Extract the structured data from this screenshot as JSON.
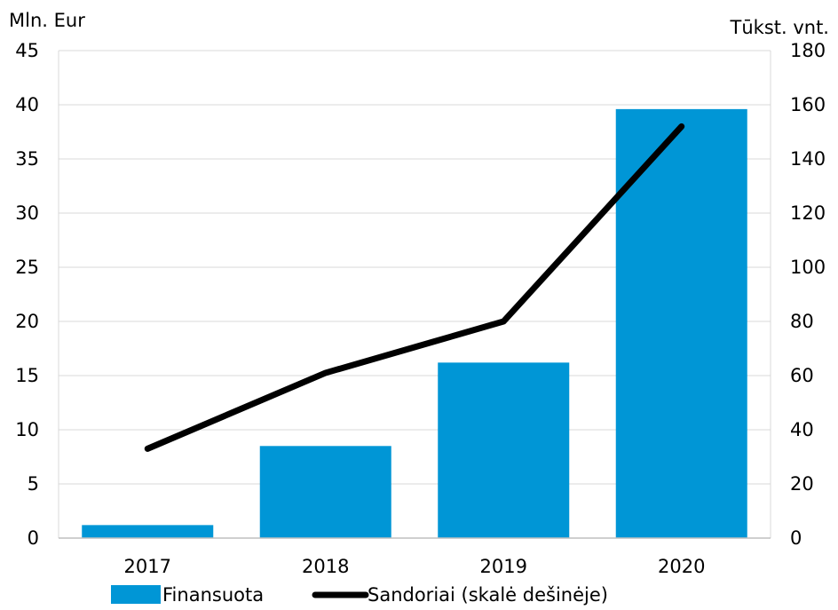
{
  "chart_data": {
    "type": "bar",
    "categories": [
      "2017",
      "2018",
      "2019",
      "2020"
    ],
    "series": [
      {
        "name": "Finansuota",
        "type": "bar",
        "axis": "left",
        "values": [
          1.2,
          8.5,
          16.2,
          39.6
        ],
        "color": "#0096d6"
      },
      {
        "name": "Sandoriai (skalė dešinėje)",
        "type": "line",
        "axis": "right",
        "values": [
          33,
          61,
          80,
          152
        ],
        "color": "#000000"
      }
    ],
    "ylabel_left": "Mln. Eur",
    "ylabel_right": "Tūkst. vnt.",
    "ylim_left": [
      0,
      45
    ],
    "yticks_left": [
      "0",
      "5",
      "10",
      "15",
      "20",
      "25",
      "30",
      "35",
      "40",
      "45"
    ],
    "ylim_right": [
      0,
      180
    ],
    "yticks_right": [
      "0",
      "20",
      "40",
      "60",
      "80",
      "100",
      "120",
      "140",
      "160",
      "180"
    ],
    "grid": true,
    "legend_position": "bottom"
  }
}
